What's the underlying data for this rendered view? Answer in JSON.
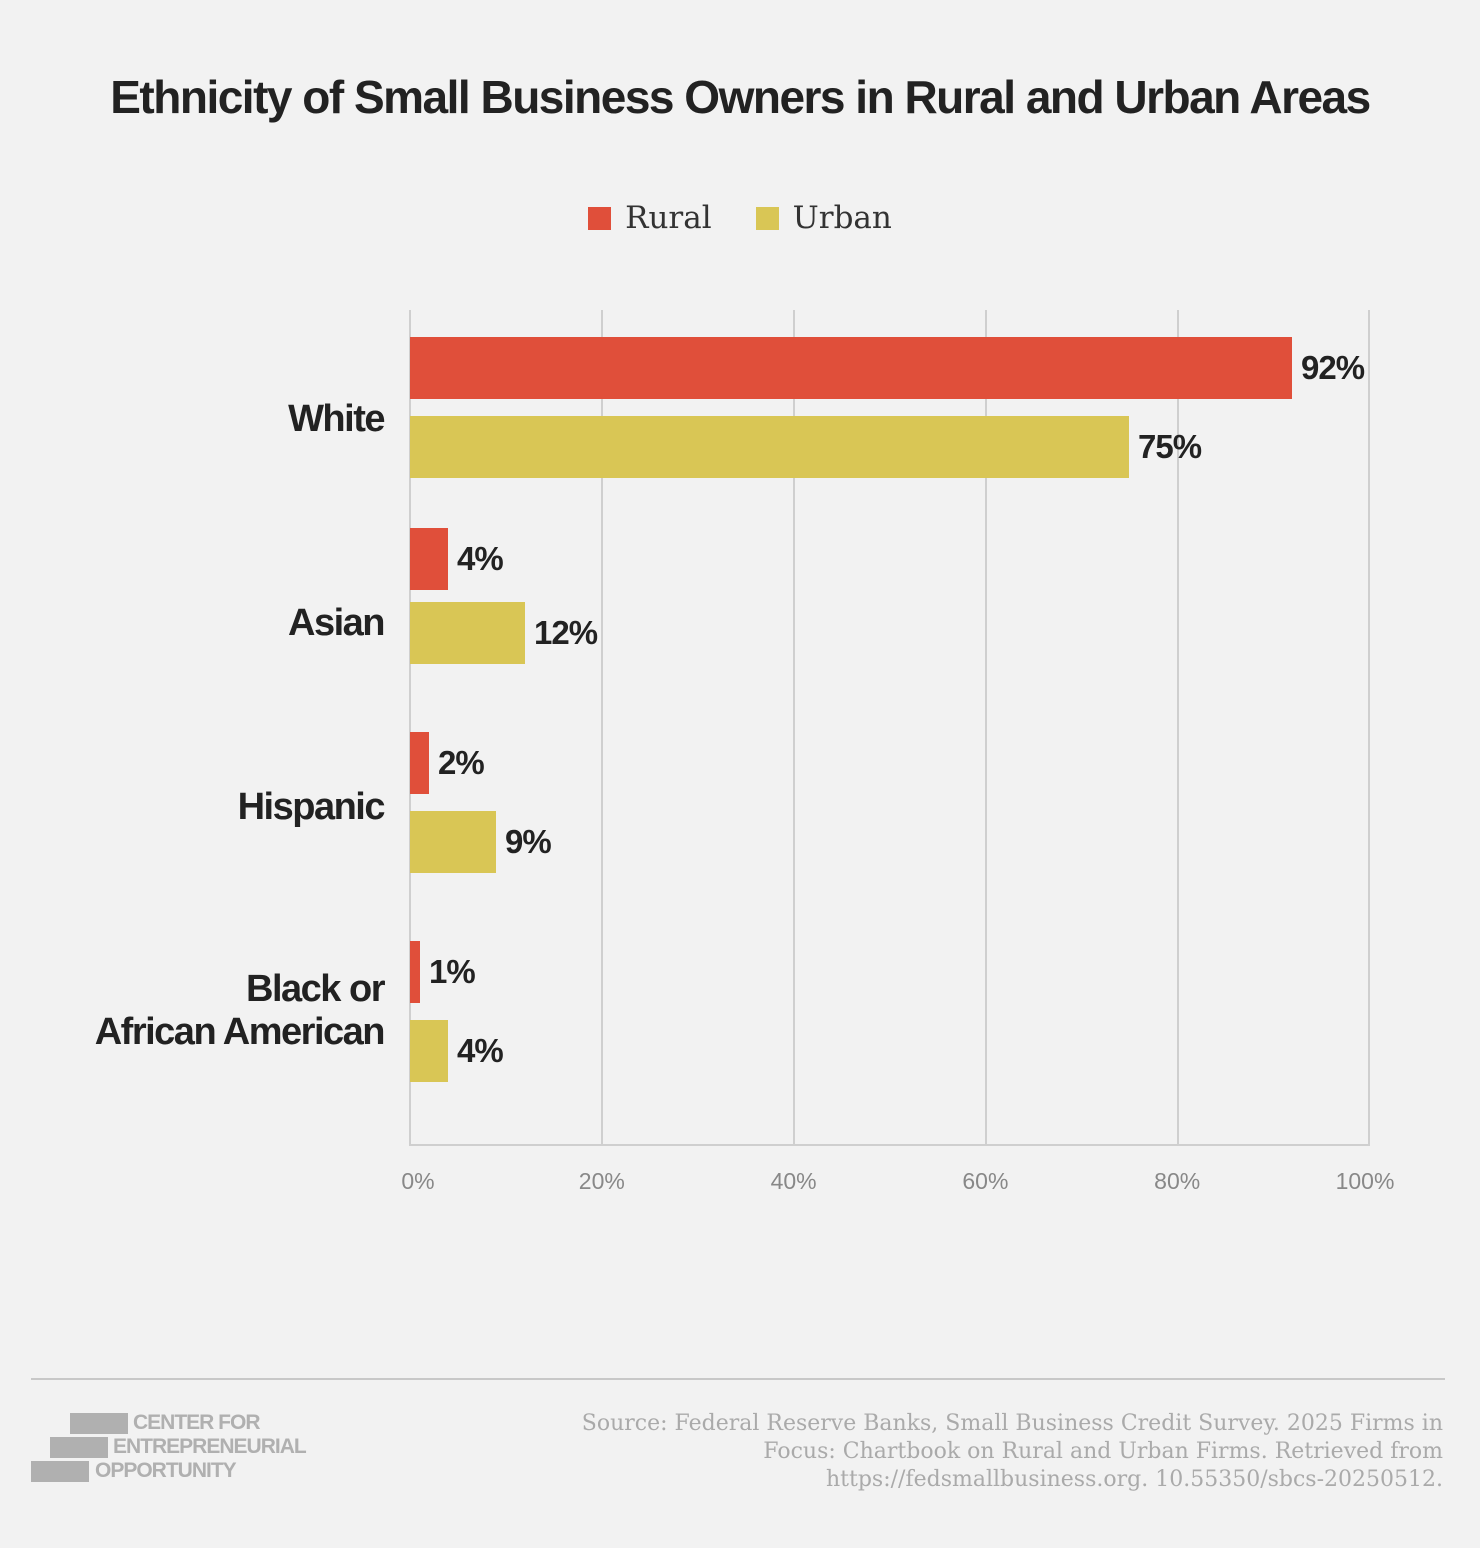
{
  "title": "Ethnicity of Small Business Owners in Rural and Urban Areas",
  "legend": [
    {
      "label": "Rural",
      "color": "#e04f3a"
    },
    {
      "label": "Urban",
      "color": "#d9c655"
    }
  ],
  "x_ticks": [
    "0%",
    "20%",
    "40%",
    "60%",
    "80%",
    "100%"
  ],
  "categories": [
    {
      "label": "White",
      "rural": 92,
      "urban": 75,
      "rural_label": "92%",
      "urban_label": "75%"
    },
    {
      "label": "Asian",
      "rural": 4,
      "urban": 12,
      "rural_label": "4%",
      "urban_label": "12%"
    },
    {
      "label": "Hispanic",
      "rural": 2,
      "urban": 9,
      "rural_label": "2%",
      "urban_label": "9%"
    },
    {
      "label": "Black or African American",
      "rural": 1,
      "urban": 4,
      "rural_label": "1%",
      "urban_label": "4%"
    }
  ],
  "footer": {
    "logo_lines": [
      "CENTER FOR",
      "ENTREPRENEURIAL",
      "OPPORTUNITY"
    ],
    "source": "Source: Federal Reserve Banks, Small Business Credit Survey. 2025 Firms in Focus: Chartbook on Rural and Urban Firms. Retrieved from https://fedsmallbusiness.org. 10.55350/sbcs-20250512."
  },
  "chart_data": {
    "type": "bar",
    "orientation": "horizontal",
    "title": "Ethnicity of Small Business Owners in Rural and Urban Areas",
    "categories": [
      "White",
      "Asian",
      "Hispanic",
      "Black or African American"
    ],
    "series": [
      {
        "name": "Rural",
        "color": "#e04f3a",
        "values": [
          92,
          4,
          2,
          1
        ]
      },
      {
        "name": "Urban",
        "color": "#d9c655",
        "values": [
          75,
          12,
          9,
          4
        ]
      }
    ],
    "xlabel": "",
    "ylabel": "",
    "xlim": [
      0,
      100
    ],
    "x_ticks": [
      "0%",
      "20%",
      "40%",
      "60%",
      "80%",
      "100%"
    ],
    "grid": "vertical",
    "legend_position": "top",
    "data_labels": true,
    "source": "Federal Reserve Banks, Small Business Credit Survey. 2025 Firms in Focus: Chartbook on Rural and Urban Firms."
  }
}
